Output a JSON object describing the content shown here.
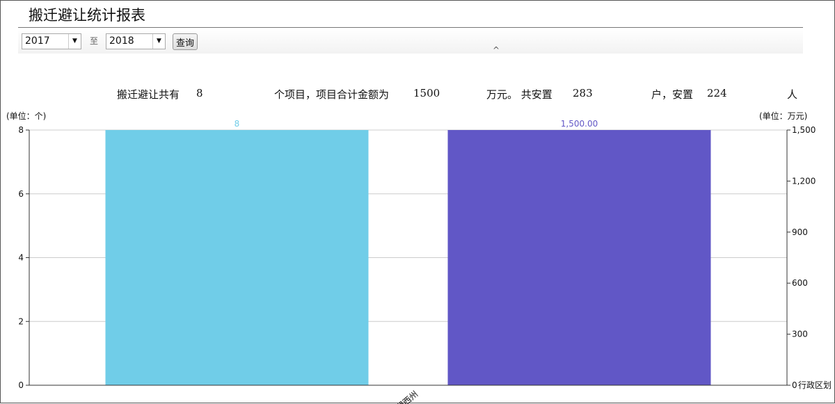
{
  "page": {
    "title": "搬迁避让统计报表"
  },
  "filter": {
    "from_year": "2017",
    "to_label": "至",
    "to_year": "2018",
    "query_label": "查询",
    "collapse_icon": "chevron-up-icon"
  },
  "summary": {
    "p1": "搬迁避让共有",
    "projects": "8",
    "p2": "个项目，项目合计金额为",
    "amount": "1500",
    "p3": "万元。 共安置",
    "households": "283",
    "p4": "户，安置",
    "people": "224",
    "p5": "人"
  },
  "chart_data": {
    "type": "bar",
    "categories": [
      "湘西州"
    ],
    "xlabel": "行政区划",
    "ylabel_left": "(单位：个)",
    "ylabel_right": "(单位：万元)",
    "ylim_left": [
      0,
      8
    ],
    "yticks_left": [
      "0",
      "2",
      "4",
      "6",
      "8"
    ],
    "ylim_right": [
      0,
      1500
    ],
    "yticks_right": [
      "0",
      "300",
      "600",
      "900",
      "1,200",
      "1,500"
    ],
    "grid": true,
    "series": [
      {
        "axis": "left",
        "values": [
          8
        ],
        "labels": [
          "8"
        ],
        "color": "#70cde8"
      },
      {
        "axis": "right",
        "values": [
          1500
        ],
        "labels": [
          "1,500.00"
        ],
        "color": "#6157c6"
      }
    ]
  }
}
